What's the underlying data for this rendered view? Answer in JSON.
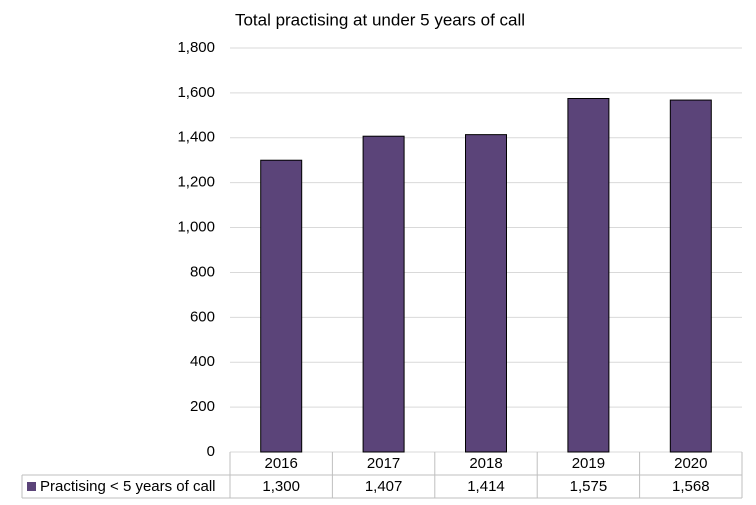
{
  "chart_data": {
    "type": "bar",
    "title": "Total practising at under 5 years of call",
    "categories": [
      "2016",
      "2017",
      "2018",
      "2019",
      "2020"
    ],
    "series": [
      {
        "name": "Practising < 5 years of call",
        "color": "#5b4479",
        "values": [
          1300,
          1407,
          1414,
          1575,
          1568
        ],
        "value_labels": [
          "1,300",
          "1,407",
          "1,414",
          "1,575",
          "1,568"
        ]
      }
    ],
    "ylim": [
      0,
      1800
    ],
    "yticks": [
      0,
      200,
      400,
      600,
      800,
      {
        "value": 1000,
        "label": "1,000"
      },
      {
        "value": 1200,
        "label": "1,200"
      },
      {
        "value": 1400,
        "label": "1,400"
      },
      {
        "value": 1600,
        "label": "1,600"
      },
      {
        "value": 1800,
        "label": "1,800"
      }
    ],
    "grid": true
  }
}
